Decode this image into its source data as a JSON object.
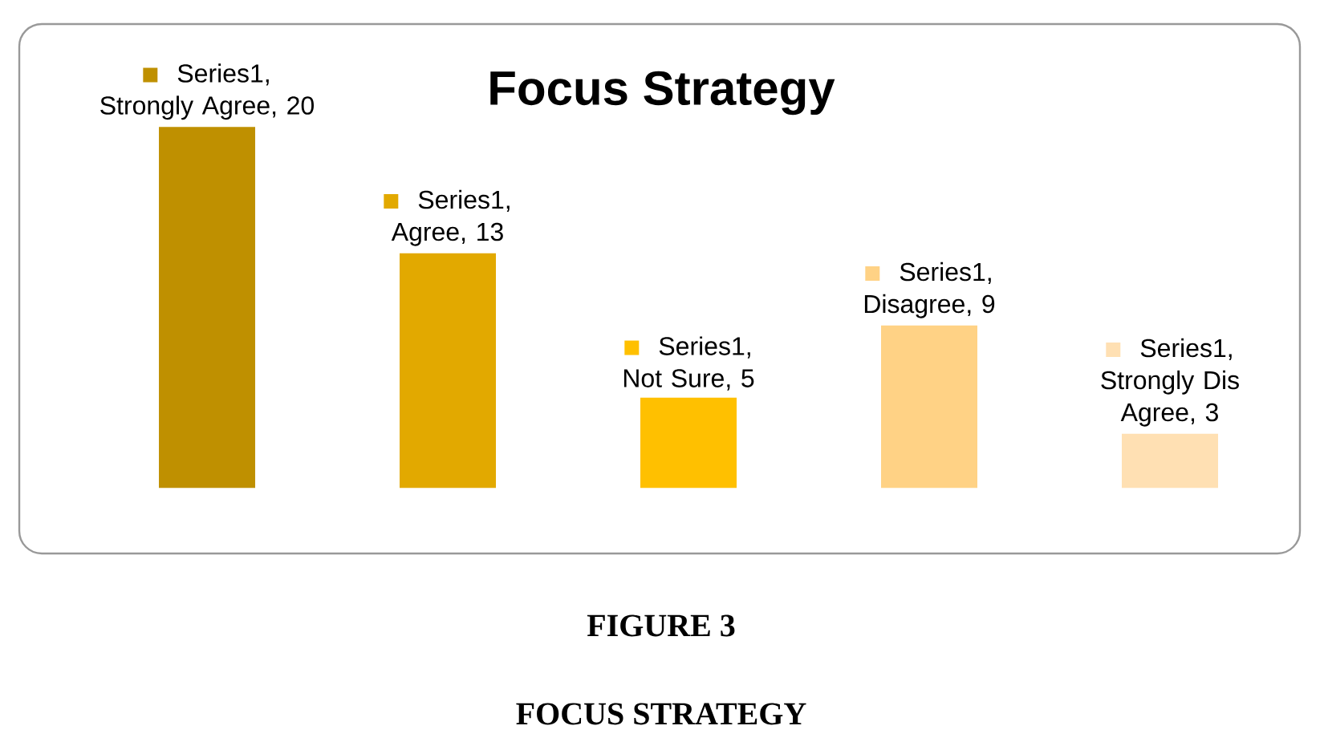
{
  "chart_data": {
    "type": "bar",
    "title": "Focus Strategy",
    "categories": [
      null,
      null,
      null,
      null,
      null
    ],
    "values": [
      20,
      13,
      5,
      9,
      3
    ],
    "colors": [
      "#bf9000",
      "#e2a900",
      "#ffc000",
      "#ffd285",
      "#ffe0b3"
    ],
    "value_labels": [
      "Series1, Strongly Agree, 20",
      "Series1, Agree, 13",
      "Series1, Not Sure, 5",
      "Series1, Disagree, 9",
      "Series1, Strongly Dis Agree, 3"
    ],
    "annotations": [
      "FIGURE 3",
      "FOCUS STRATEGY"
    ]
  }
}
